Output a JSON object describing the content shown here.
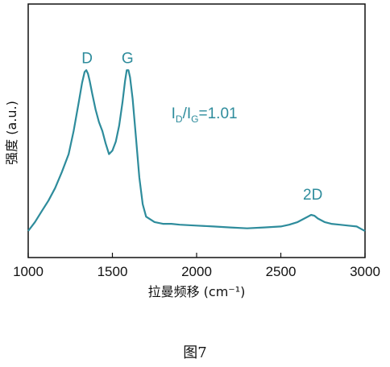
{
  "figure_caption": "图7",
  "chart_data": {
    "type": "line",
    "xlabel": "拉曼频移 (cm⁻¹)",
    "ylabel": "强度 (a.u.)",
    "xlim": [
      1000,
      3000
    ],
    "ylim": [
      0,
      1.0
    ],
    "x_ticks": [
      "1000",
      "1500",
      "2000",
      "2500",
      "3000"
    ],
    "y_ticks_shown": false,
    "grid": false,
    "line_color": "#2e8c9c",
    "annotations": [
      {
        "text": "D",
        "x": 1350,
        "y": 0.94
      },
      {
        "text": "G",
        "x": 1590,
        "y": 0.94
      },
      {
        "text": "2D",
        "x": 2690,
        "y": 0.175
      }
    ],
    "ratio_label": {
      "base_i": "I",
      "sub_d": "D",
      "slash": "/",
      "sub_g": "G",
      "value": "=1.01",
      "x": 1850,
      "y": 0.63
    },
    "series": [
      {
        "x": [
          1000,
          1040,
          1080,
          1120,
          1160,
          1200,
          1240,
          1270,
          1300,
          1320,
          1335,
          1345,
          1355,
          1365,
          1380,
          1400,
          1420,
          1440,
          1460,
          1480,
          1500,
          1520,
          1540,
          1560,
          1575,
          1585,
          1595,
          1605,
          1620,
          1640,
          1660,
          1680,
          1700,
          1750,
          1800,
          1850,
          1900,
          2000,
          2100,
          2200,
          2300,
          2400,
          2500,
          2550,
          2600,
          2650,
          2680,
          2700,
          2720,
          2760,
          2800,
          2850,
          2900,
          2950,
          2980,
          3000
        ],
        "y": [
          0.0,
          0.05,
          0.11,
          0.17,
          0.24,
          0.33,
          0.43,
          0.56,
          0.72,
          0.83,
          0.89,
          0.9,
          0.88,
          0.84,
          0.77,
          0.68,
          0.61,
          0.56,
          0.49,
          0.43,
          0.45,
          0.5,
          0.59,
          0.72,
          0.84,
          0.9,
          0.9,
          0.86,
          0.74,
          0.52,
          0.3,
          0.15,
          0.08,
          0.05,
          0.04,
          0.04,
          0.035,
          0.03,
          0.025,
          0.02,
          0.015,
          0.02,
          0.025,
          0.035,
          0.05,
          0.075,
          0.09,
          0.085,
          0.07,
          0.05,
          0.04,
          0.035,
          0.03,
          0.025,
          0.01,
          0.0
        ]
      }
    ]
  }
}
